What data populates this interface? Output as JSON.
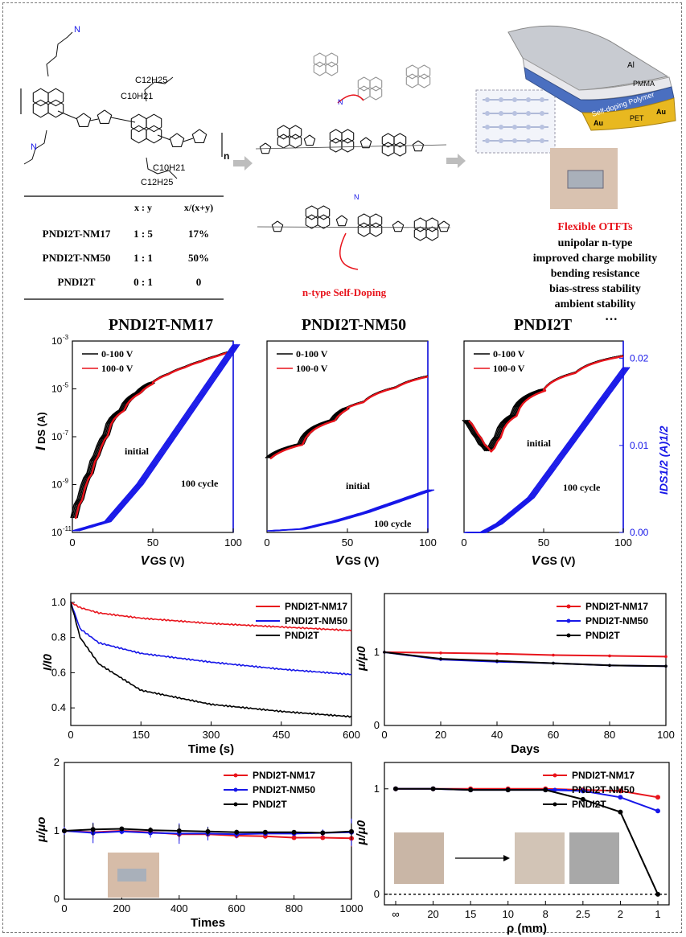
{
  "figure": {
    "table": {
      "headers": [
        "",
        "x : y",
        "x/(x+y)"
      ],
      "rows": [
        [
          "PNDI2T-NM17",
          "1 : 5",
          "17%"
        ],
        [
          "PNDI2T-NM50",
          "1 : 1",
          "50%"
        ],
        [
          "PNDI2T",
          "0 : 1",
          "0"
        ]
      ]
    },
    "molecule_labels": {
      "n": "n",
      "c12h25": "C12H25",
      "c10h21": "C10H21"
    },
    "self_doping_label": "n-type Self-Doping",
    "device": {
      "layers": [
        "Al",
        "PMMA",
        "Self-doping Polymer",
        "Au",
        "PET",
        "Au"
      ]
    },
    "features": {
      "title": "Flexible OTFTs",
      "items": [
        "unipolar n-type",
        "improved charge mobility",
        "bending resistance",
        "bias-stress stability",
        "ambient stability"
      ]
    },
    "colors": {
      "red": "#e8141c",
      "blue": "#1717e8",
      "black": "#000000",
      "device_gold": "#e8b820",
      "device_blue": "#4a6fc0"
    }
  },
  "chart_data": [
    {
      "type": "line",
      "title": "PNDI2T-NM17",
      "xlabel": "VGS (V)",
      "ylabel": "IDS (A)",
      "xlim": [
        0,
        100
      ],
      "ylim_log": [
        1e-11,
        0.001
      ],
      "x_ticks": [
        "0",
        "50",
        "100"
      ],
      "y_ticks": [
        "10-11",
        "10-9",
        "10-7",
        "10-5",
        "10-3"
      ],
      "legend": [
        "0-100 V",
        "100-0 V"
      ],
      "annotations": [
        "initial",
        "100 cycle"
      ],
      "transfer_log": {
        "x": [
          0,
          5,
          10,
          15,
          20,
          30,
          40,
          50,
          60,
          70,
          80,
          90,
          100
        ],
        "y": [
          4e-11,
          3e-10,
          3e-09,
          2e-08,
          1.2e-07,
          1.3e-06,
          7e-06,
          2e-05,
          4.5e-05,
          8.5e-05,
          0.00015,
          0.00025,
          0.0004
        ]
      },
      "sqrt_curve": {
        "x": [
          0,
          20,
          40,
          60,
          80,
          100
        ],
        "y_frac": [
          0,
          0.05,
          0.25,
          0.5,
          0.75,
          1.0
        ]
      }
    },
    {
      "type": "line",
      "title": "PNDI2T-NM50",
      "xlabel": "VGS (V)",
      "xlim": [
        0,
        100
      ],
      "x_ticks": [
        "0",
        "50",
        "100"
      ],
      "legend": [
        "0-100 V",
        "100-0 V"
      ],
      "annotations": [
        "initial",
        "100 cycle"
      ],
      "transfer_log": {
        "x": [
          0,
          20,
          40,
          60,
          80,
          100
        ],
        "y": [
          1.3e-08,
          5e-08,
          5e-07,
          3e-06,
          1.2e-05,
          3.5e-05
        ]
      },
      "sqrt_curve": {
        "x": [
          0,
          20,
          40,
          60,
          80,
          100
        ],
        "y_frac": [
          0,
          0.01,
          0.05,
          0.1,
          0.16,
          0.22
        ]
      }
    },
    {
      "type": "line",
      "title": "PNDI2T",
      "title_suffix": "···",
      "xlabel": "VGS (V)",
      "ylabel_right": "IDS1/2 (A)1/2",
      "xlim": [
        0,
        100
      ],
      "x_ticks": [
        "0",
        "50",
        "100"
      ],
      "y2_ticks": [
        "0.00",
        "0.01",
        "0.02"
      ],
      "legend": [
        "0-100 V",
        "100-0 V"
      ],
      "annotations": [
        "initial",
        "100 cycle"
      ],
      "transfer_log": {
        "x": [
          0,
          5,
          10,
          15,
          20,
          30,
          50,
          70,
          100
        ],
        "y": [
          5e-07,
          1.5e-07,
          5e-08,
          2e-08,
          1e-07,
          8e-07,
          1e-05,
          5e-05,
          0.00025
        ]
      },
      "sqrt_curve": {
        "x": [
          0,
          10,
          20,
          40,
          60,
          80,
          100
        ],
        "y": [
          0.0,
          0.0,
          0.001,
          0.004,
          0.009,
          0.014,
          0.019
        ]
      }
    },
    {
      "type": "line",
      "xlabel": "Time (s)",
      "ylabel": "I/I0",
      "xlim": [
        0,
        600
      ],
      "ylim": [
        0.3,
        1.05
      ],
      "x_ticks": [
        "0",
        "150",
        "300",
        "450",
        "600"
      ],
      "y_ticks": [
        "0.4",
        "0.6",
        "0.8",
        "1.0"
      ],
      "series": [
        {
          "name": "PNDI2T-NM17",
          "x": [
            0,
            20,
            60,
            150,
            300,
            450,
            600
          ],
          "y": [
            1.0,
            0.97,
            0.94,
            0.91,
            0.88,
            0.86,
            0.84
          ]
        },
        {
          "name": "PNDI2T-NM50",
          "x": [
            0,
            20,
            60,
            150,
            300,
            450,
            600
          ],
          "y": [
            1.0,
            0.85,
            0.77,
            0.71,
            0.66,
            0.62,
            0.59
          ]
        },
        {
          "name": "PNDI2T",
          "x": [
            0,
            20,
            60,
            150,
            300,
            450,
            600
          ],
          "y": [
            1.0,
            0.8,
            0.65,
            0.5,
            0.42,
            0.38,
            0.35
          ]
        }
      ]
    },
    {
      "type": "line",
      "xlabel": "Days",
      "ylabel": "μ/μ0",
      "xlim": [
        0,
        100
      ],
      "ylim": [
        0,
        1.8
      ],
      "x_ticks": [
        "0",
        "20",
        "40",
        "60",
        "80",
        "100"
      ],
      "y_ticks": [
        "0",
        "1"
      ],
      "series": [
        {
          "name": "PNDI2T-NM17",
          "x": [
            0,
            20,
            40,
            60,
            80,
            100
          ],
          "y": [
            1.0,
            0.99,
            0.98,
            0.96,
            0.95,
            0.94
          ]
        },
        {
          "name": "PNDI2T-NM50",
          "x": [
            0,
            20,
            40,
            60,
            80,
            100
          ],
          "y": [
            1.0,
            0.9,
            0.87,
            0.85,
            0.82,
            0.81
          ]
        },
        {
          "name": "PNDI2T",
          "x": [
            0,
            20,
            40,
            60,
            80,
            100
          ],
          "y": [
            1.0,
            0.91,
            0.88,
            0.85,
            0.82,
            0.81
          ]
        }
      ]
    },
    {
      "type": "line",
      "xlabel": "Times",
      "ylabel": "μ/μo",
      "xlim": [
        0,
        1000
      ],
      "ylim": [
        0,
        2
      ],
      "x_ticks": [
        "0",
        "200",
        "400",
        "600",
        "800",
        "1000"
      ],
      "y_ticks": [
        "0",
        "1",
        "2"
      ],
      "series": [
        {
          "name": "PNDI2T-NM17",
          "x": [
            0,
            100,
            200,
            300,
            400,
            500,
            600,
            700,
            800,
            900,
            1000
          ],
          "y": [
            1.0,
            0.98,
            1.0,
            0.98,
            0.95,
            0.95,
            0.93,
            0.92,
            0.9,
            0.9,
            0.89
          ]
        },
        {
          "name": "PNDI2T-NM50",
          "x": [
            0,
            100,
            200,
            300,
            400,
            500,
            600,
            700,
            800,
            900,
            1000
          ],
          "y": [
            1.0,
            0.97,
            0.99,
            0.97,
            0.96,
            0.96,
            0.95,
            0.96,
            0.96,
            0.97,
            0.98
          ]
        },
        {
          "name": "PNDI2T",
          "x": [
            0,
            100,
            200,
            300,
            400,
            500,
            600,
            700,
            800,
            900,
            1000
          ],
          "y": [
            1.0,
            1.02,
            1.03,
            1.01,
            1.0,
            0.99,
            0.98,
            0.98,
            0.98,
            0.97,
            0.99
          ]
        }
      ]
    },
    {
      "type": "line",
      "xlabel": "ρ (mm)",
      "ylabel": "μ/μ0",
      "categories": [
        "∞",
        "20",
        "15",
        "10",
        "8",
        "2.5",
        "2",
        "1"
      ],
      "ylim": [
        -0.1,
        1.25
      ],
      "y_ticks": [
        "0",
        "1"
      ],
      "series": [
        {
          "name": "PNDI2T-NM17",
          "values": [
            1.0,
            1.0,
            1.0,
            1.0,
            1.0,
            0.99,
            0.98,
            0.92
          ]
        },
        {
          "name": "PNDI2T-NM50",
          "values": [
            1.0,
            1.0,
            0.99,
            0.99,
            0.99,
            0.98,
            0.92,
            0.79
          ]
        },
        {
          "name": "PNDI2T",
          "values": [
            1.0,
            1.0,
            0.99,
            0.99,
            0.99,
            0.9,
            0.78,
            0.0
          ]
        }
      ]
    }
  ]
}
